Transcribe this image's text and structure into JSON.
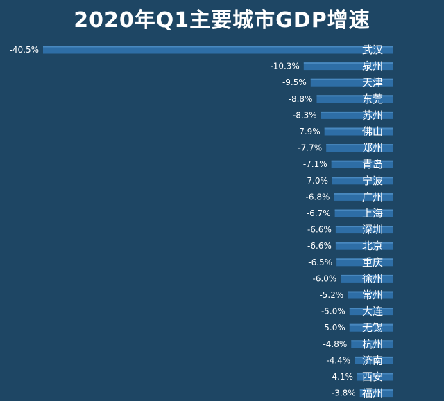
{
  "chart_data": {
    "type": "bar",
    "orientation": "horizontal",
    "title": "2020年Q1主要城市GDP增速",
    "categories": [
      "武汉",
      "泉州",
      "天津",
      "东莞",
      "苏州",
      "佛山",
      "郑州",
      "青岛",
      "宁波",
      "广州",
      "上海",
      "深圳",
      "北京",
      "重庆",
      "徐州",
      "常州",
      "大连",
      "无锡",
      "杭州",
      "济南",
      "西安",
      "福州"
    ],
    "values": [
      -40.5,
      -10.3,
      -9.5,
      -8.8,
      -8.3,
      -7.9,
      -7.7,
      -7.1,
      -7.0,
      -6.8,
      -6.7,
      -6.6,
      -6.6,
      -6.5,
      -6.0,
      -5.2,
      -5.0,
      -5.0,
      -4.8,
      -4.4,
      -4.1,
      -3.8
    ],
    "value_labels": [
      "-40.5%",
      "-10.3%",
      "-9.5%",
      "-8.8%",
      "-8.3%",
      "-7.9%",
      "-7.7%",
      "-7.1%",
      "-7.0%",
      "-6.8%",
      "-6.7%",
      "-6.6%",
      "-6.6%",
      "-6.5%",
      "-6.0%",
      "-5.2%",
      "-5.0%",
      "-5.0%",
      "-4.8%",
      "-4.4%",
      "-4.1%",
      "-3.8%"
    ],
    "xlim": [
      -40.5,
      0
    ],
    "grid": false,
    "legend": "none"
  },
  "colors": {
    "background": "#1e4664",
    "bar": "#2e6ea6",
    "bar_highlight": "#5a9ad0",
    "text": "#ffffff"
  }
}
